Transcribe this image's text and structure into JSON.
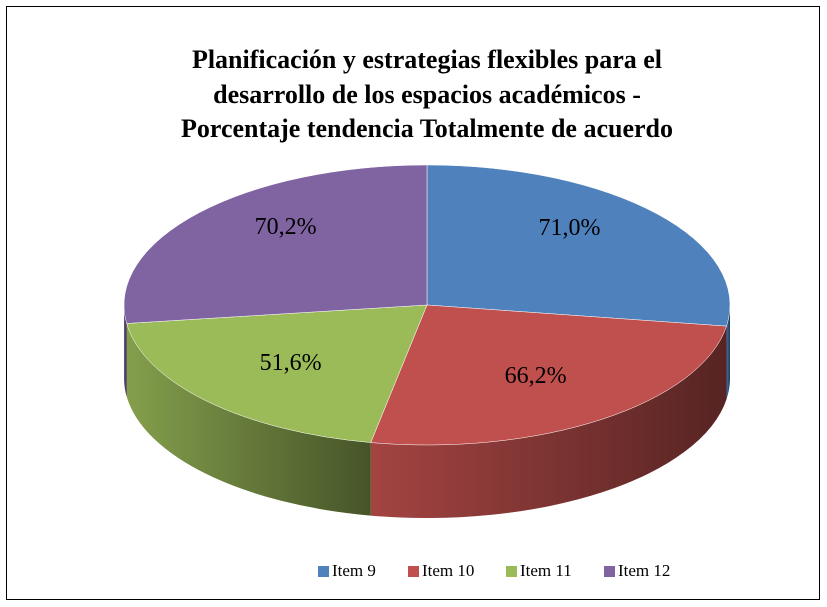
{
  "chart_data": {
    "type": "pie",
    "title": [
      "Planificación y estrategias flexibles para el",
      "desarrollo de los espacios académicos -",
      "Porcentaje tendencia Totalmente de acuerdo"
    ],
    "categories": [
      "Item 9",
      "Item 10",
      "Item 11",
      "Item 12"
    ],
    "values": [
      71.0,
      66.2,
      51.6,
      70.2
    ],
    "value_labels": [
      "71,0%",
      "66,2%",
      "51,6%",
      "70,2%"
    ],
    "colors": [
      "#4F81BD",
      "#C0504D",
      "#9BBB59",
      "#8064A2"
    ],
    "legend": "bottom"
  }
}
